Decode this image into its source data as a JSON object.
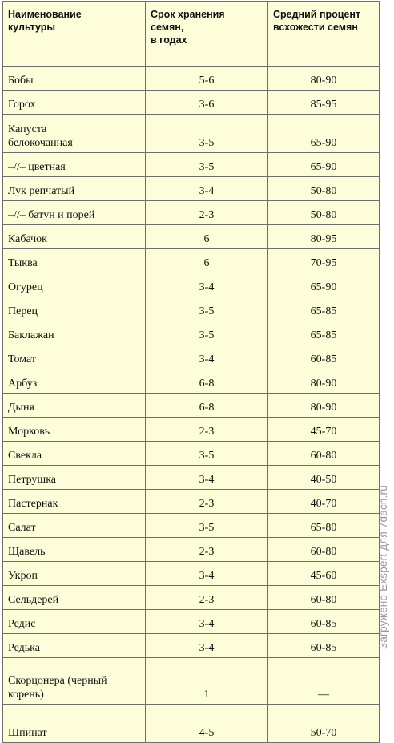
{
  "headers": {
    "culture": "Наименование\nкультуры",
    "storage": "Срок хранения\nсемян,\n в годах",
    "germination": "Средний процент\nвсхожести семян"
  },
  "rows": [
    {
      "name": "Бобы",
      "years": "5-6",
      "pct": "80-90"
    },
    {
      "name": "Горох",
      "years": "3-6",
      "pct": "85-95"
    },
    {
      "name": "Капуста\nбелокочанная",
      "years": "3-5",
      "pct": "65-90"
    },
    {
      "name": "–//–  цветная",
      "years": "3-5",
      "pct": "65-90"
    },
    {
      "name": "Лук репчатый",
      "years": "3-4",
      "pct": "50-80"
    },
    {
      "name": "–//–  батун и порей",
      "years": "2-3",
      "pct": "50-80"
    },
    {
      "name": "Кабачок",
      "years": "6",
      "pct": "80-95"
    },
    {
      "name": "Тыква",
      "years": "6",
      "pct": "70-95"
    },
    {
      "name": "Огурец",
      "years": "3-4",
      "pct": "65-90"
    },
    {
      "name": "Перец",
      "years": "3-5",
      "pct": "65-85"
    },
    {
      "name": "Баклажан",
      "years": "3-5",
      "pct": "65-85"
    },
    {
      "name": "Томат",
      "years": "3-4",
      "pct": "60-85"
    },
    {
      "name": "Арбуз",
      "years": "6-8",
      "pct": "80-90"
    },
    {
      "name": "Дыня",
      "years": "6-8",
      "pct": "80-90"
    },
    {
      "name": "Морковь",
      "years": "2-3",
      "pct": "45-70"
    },
    {
      "name": "Свекла",
      "years": "3-5",
      "pct": "60-80"
    },
    {
      "name": "Петрушка",
      "years": "3-4",
      "pct": "40-50"
    },
    {
      "name": "Пастернак",
      "years": "2-3",
      "pct": "40-70"
    },
    {
      "name": "Салат",
      "years": "3-5",
      "pct": "65-80"
    },
    {
      "name": "Щавель",
      "years": "2-3",
      "pct": "60-80"
    },
    {
      "name": "Укроп",
      "years": "3-4",
      "pct": "45-60"
    },
    {
      "name": "Сельдерей",
      "years": "2-3",
      "pct": "60-80"
    },
    {
      "name": "Редис",
      "years": "3-4",
      "pct": "60-85"
    },
    {
      "name": "Редька",
      "years": "3-4",
      "pct": "60-85"
    },
    {
      "name": "Скорцонера (черный\nкорень)",
      "years": "1",
      "pct": "—"
    },
    {
      "name": "Шпинат",
      "years": "4-5",
      "pct": "50-70"
    }
  ],
  "watermark": "Загружено Exspert для 7dach.ru"
}
